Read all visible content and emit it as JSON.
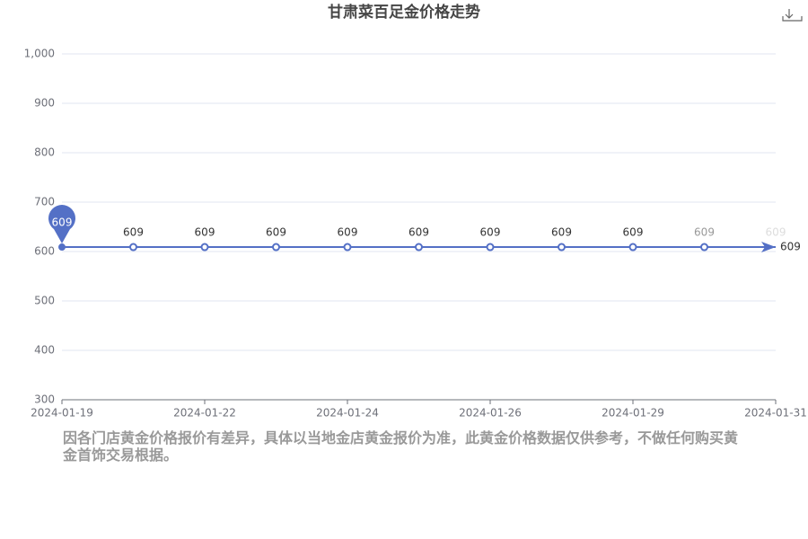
{
  "chart_data": {
    "type": "line",
    "title": "甘肃菜百足金价格走势",
    "categories": [
      "2024-01-19",
      null,
      "2024-01-22",
      null,
      "2024-01-24",
      null,
      "2024-01-26",
      null,
      "2024-01-29",
      null,
      "2024-01-31"
    ],
    "series": [
      {
        "color": "#5470c6",
        "values": [
          609,
          609,
          609,
          609,
          609,
          609,
          609,
          609,
          609,
          609,
          609
        ]
      }
    ],
    "ylim": [
      300,
      1000
    ],
    "yticks": [
      300,
      400,
      500,
      600,
      700,
      800,
      900,
      {
        "value": 1000,
        "label": "1,000"
      }
    ],
    "grid": true,
    "note": "因各门店黄金价格报价有差异，具体以当地金店黄金报价为准，此黄金价格数据仅供参考，不做任何购买黄金首饰交易根据。"
  }
}
